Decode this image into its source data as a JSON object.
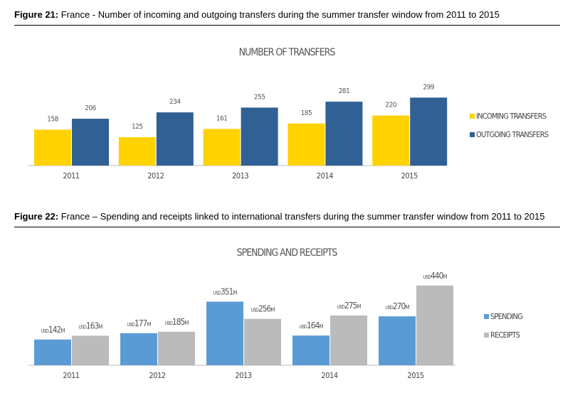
{
  "figures": [
    {
      "label": "Figure 21:",
      "caption": " France - Number of incoming and outgoing transfers during the summer transfer window from 2011 to 2015"
    },
    {
      "label": "Figure 22:",
      "caption": " France – Spending and receipts linked to international transfers during the summer transfer window from 2011 to 2015"
    }
  ],
  "chart_data": [
    {
      "type": "bar",
      "title": "NUMBER OF TRANSFERS",
      "categories": [
        "2011",
        "2012",
        "2013",
        "2014",
        "2015"
      ],
      "series": [
        {
          "name": "INCOMING TRANSFERS",
          "color": "#FFD200",
          "values": [
            158,
            125,
            161,
            185,
            220
          ]
        },
        {
          "name": "OUTGOING TRANSFERS",
          "color": "#316094",
          "values": [
            206,
            234,
            255,
            281,
            299
          ]
        }
      ],
      "legend": "right",
      "grid": false
    },
    {
      "type": "bar",
      "title": "SPENDING AND RECEIPTS",
      "categories": [
        "2011",
        "2012",
        "2013",
        "2014",
        "2015"
      ],
      "value_prefix": "USD",
      "value_suffix": "M",
      "series": [
        {
          "name": "SPENDING",
          "color": "#5B9BD5",
          "values": [
            142,
            177,
            351,
            164,
            270
          ]
        },
        {
          "name": "RECEIPTS",
          "color": "#BBBBBB",
          "values": [
            163,
            185,
            256,
            275,
            440
          ]
        }
      ],
      "legend": "right",
      "grid": false
    }
  ]
}
